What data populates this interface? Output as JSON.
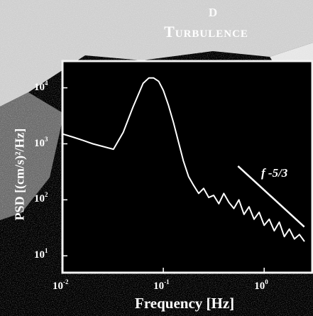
{
  "title": {
    "line1": "D",
    "line2": "Turbulence"
  },
  "colors": {
    "background": "#000000",
    "foreground": "#ffffff",
    "haze": "#d9d9d9"
  },
  "chart_data": {
    "type": "line",
    "title": "Turbulence",
    "xlabel": "Frequency [Hz]",
    "ylabel": "PSD [(cm/s)²/Hz]",
    "xscale": "log",
    "yscale": "log",
    "xlim": [
      0.01,
      3
    ],
    "ylim": [
      5,
      30000
    ],
    "grid": false,
    "x_ticks": [
      {
        "base": "10",
        "exp": "-2",
        "value": 0.01
      },
      {
        "base": "10",
        "exp": "-1",
        "value": 0.1
      },
      {
        "base": "10",
        "exp": "0",
        "value": 1
      }
    ],
    "y_ticks": [
      {
        "base": "10",
        "exp": "1",
        "value": 10
      },
      {
        "base": "10",
        "exp": "2",
        "value": 100
      },
      {
        "base": "10",
        "exp": "3",
        "value": 1000
      },
      {
        "base": "10",
        "exp": "4",
        "value": 10000
      }
    ],
    "annotation": {
      "text": "f -5/3"
    },
    "series": [
      {
        "values_x": [
          0.01,
          0.013,
          0.016,
          0.02,
          0.025,
          0.032,
          0.04,
          0.05,
          0.063,
          0.072,
          0.08,
          0.09,
          0.1,
          0.112,
          0.126,
          0.141,
          0.158,
          0.178,
          0.2,
          0.224,
          0.251,
          0.282,
          0.316,
          0.355,
          0.398,
          0.447,
          0.501,
          0.562,
          0.631,
          0.708,
          0.794,
          0.891,
          1.0,
          1.122,
          1.259,
          1.413,
          1.585,
          1.778,
          1.995,
          2.239,
          2.512
        ],
        "values_y": [
          1500,
          1300,
          1150,
          1000,
          900,
          800,
          1600,
          4500,
          12000,
          15000,
          15000,
          13000,
          9000,
          5000,
          2400,
          1100,
          500,
          260,
          180,
          130,
          160,
          110,
          120,
          85,
          130,
          90,
          70,
          100,
          55,
          75,
          45,
          60,
          35,
          45,
          28,
          40,
          22,
          30,
          20,
          24,
          18
        ]
      },
      {
        "name": "",
        "values_x": [
          0.55,
          2.5
        ],
        "values_y": [
          400,
          33
        ]
      }
    ]
  }
}
